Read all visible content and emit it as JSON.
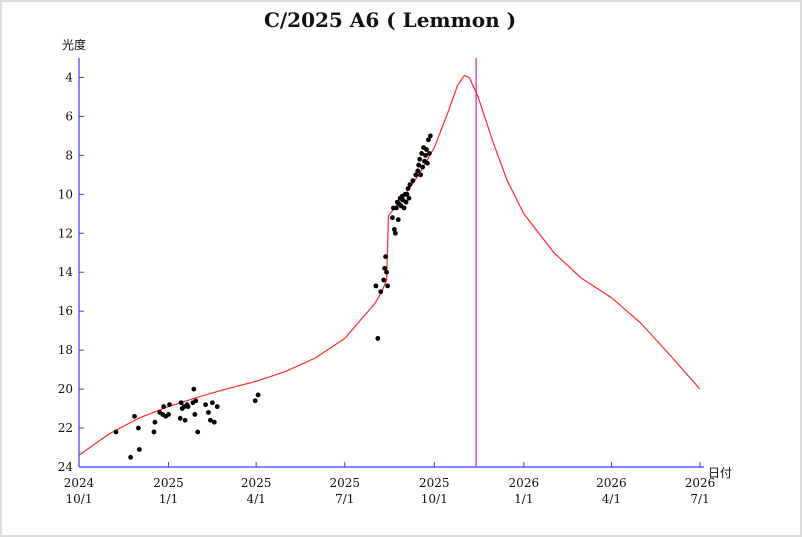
{
  "chart_data": {
    "type": "scatter",
    "title": "C/2025 A6 ( Lemmon )",
    "ylabel": "光度",
    "xlabel": "日付",
    "y_inverted": true,
    "ylim": [
      24,
      3
    ],
    "xlim": [
      "2024-10-01",
      "2026-07-01"
    ],
    "y_ticks": [
      4,
      6,
      8,
      10,
      12,
      14,
      16,
      18,
      20,
      22,
      24
    ],
    "x_ticks": [
      {
        "date": "2024-10-01",
        "line1": "2024",
        "line2": "10/1"
      },
      {
        "date": "2025-01-01",
        "line1": "2025",
        "line2": "1/1"
      },
      {
        "date": "2025-04-01",
        "line1": "2025",
        "line2": "4/1"
      },
      {
        "date": "2025-07-01",
        "line1": "2025",
        "line2": "7/1"
      },
      {
        "date": "2025-10-01",
        "line1": "2025",
        "line2": "10/1"
      },
      {
        "date": "2026-01-01",
        "line1": "2026",
        "line2": "1/1"
      },
      {
        "date": "2026-04-01",
        "line1": "2026",
        "line2": "4/1"
      },
      {
        "date": "2026-07-01",
        "line1": "2026",
        "line2": "7/1"
      }
    ],
    "current_date_marker": "2025-11-13",
    "colors": {
      "curve": "#ff2a2a",
      "axis": "#3a3aff",
      "marker": "#cc33cc",
      "points": "#000000"
    },
    "series": [
      {
        "kind": "predicted_curve",
        "points": [
          [
            "2024-10-01",
            23.4
          ],
          [
            "2024-11-01",
            22.3
          ],
          [
            "2024-12-01",
            21.5
          ],
          [
            "2025-01-01",
            20.9
          ],
          [
            "2025-02-01",
            20.4
          ],
          [
            "2025-03-01",
            20.0
          ],
          [
            "2025-04-01",
            19.6
          ],
          [
            "2025-05-01",
            19.1
          ],
          [
            "2025-06-01",
            18.4
          ],
          [
            "2025-07-01",
            17.4
          ],
          [
            "2025-08-01",
            15.6
          ],
          [
            "2025-08-08",
            15.0
          ],
          [
            "2025-08-13",
            14.4
          ],
          [
            "2025-08-15",
            11.1
          ],
          [
            "2025-09-01",
            10.0
          ],
          [
            "2025-09-15",
            9.0
          ],
          [
            "2025-10-01",
            7.6
          ],
          [
            "2025-10-15",
            5.8
          ],
          [
            "2025-10-25",
            4.4
          ],
          [
            "2025-11-01",
            3.9
          ],
          [
            "2025-11-06",
            4.0
          ],
          [
            "2025-11-15",
            5.0
          ],
          [
            "2025-12-01",
            7.4
          ],
          [
            "2025-12-15",
            9.3
          ],
          [
            "2026-01-01",
            11.0
          ],
          [
            "2026-02-01",
            13.0
          ],
          [
            "2026-03-01",
            14.3
          ],
          [
            "2026-04-01",
            15.3
          ],
          [
            "2026-05-01",
            16.6
          ],
          [
            "2026-06-01",
            18.3
          ],
          [
            "2026-07-01",
            20.0
          ]
        ]
      },
      {
        "kind": "observations",
        "points": [
          [
            "2024-11-08",
            22.2
          ],
          [
            "2024-11-23",
            23.5
          ],
          [
            "2024-11-27",
            21.4
          ],
          [
            "2024-12-01",
            22.0
          ],
          [
            "2024-12-02",
            23.1
          ],
          [
            "2024-12-17",
            22.2
          ],
          [
            "2024-12-18",
            21.7
          ],
          [
            "2024-12-23",
            21.2
          ],
          [
            "2024-12-26",
            21.3
          ],
          [
            "2024-12-27",
            20.9
          ],
          [
            "2024-12-29",
            21.4
          ],
          [
            "2025-01-01",
            21.3
          ],
          [
            "2025-01-02",
            20.8
          ],
          [
            "2025-01-13",
            21.5
          ],
          [
            "2025-01-14",
            20.7
          ],
          [
            "2025-01-15",
            21.0
          ],
          [
            "2025-01-17",
            20.9
          ],
          [
            "2025-01-18",
            21.6
          ],
          [
            "2025-01-20",
            20.8
          ],
          [
            "2025-01-21",
            20.9
          ],
          [
            "2025-01-26",
            20.7
          ],
          [
            "2025-01-27",
            20.0
          ],
          [
            "2025-01-28",
            21.3
          ],
          [
            "2025-01-29",
            20.6
          ],
          [
            "2025-01-31",
            22.2
          ],
          [
            "2025-02-08",
            20.8
          ],
          [
            "2025-02-11",
            21.2
          ],
          [
            "2025-02-13",
            21.6
          ],
          [
            "2025-02-15",
            20.7
          ],
          [
            "2025-02-17",
            21.7
          ],
          [
            "2025-02-20",
            20.9
          ],
          [
            "2025-03-31",
            20.6
          ],
          [
            "2025-04-03",
            20.3
          ],
          [
            "2025-08-02",
            14.7
          ],
          [
            "2025-08-04",
            17.4
          ],
          [
            "2025-08-07",
            15.0
          ],
          [
            "2025-08-10",
            14.4
          ],
          [
            "2025-08-11",
            13.8
          ],
          [
            "2025-08-12",
            13.2
          ],
          [
            "2025-08-13",
            14.0
          ],
          [
            "2025-08-14",
            14.7
          ],
          [
            "2025-08-19",
            11.2
          ],
          [
            "2025-08-20",
            10.7
          ],
          [
            "2025-08-21",
            11.8
          ],
          [
            "2025-08-22",
            12.0
          ],
          [
            "2025-08-23",
            10.7
          ],
          [
            "2025-08-24",
            10.4
          ],
          [
            "2025-08-25",
            11.3
          ],
          [
            "2025-08-26",
            10.5
          ],
          [
            "2025-08-27",
            10.2
          ],
          [
            "2025-08-28",
            10.6
          ],
          [
            "2025-08-29",
            10.1
          ],
          [
            "2025-08-30",
            10.3
          ],
          [
            "2025-08-31",
            10.7
          ],
          [
            "2025-09-01",
            10.0
          ],
          [
            "2025-09-02",
            10.4
          ],
          [
            "2025-09-03",
            10.0
          ],
          [
            "2025-09-04",
            9.7
          ],
          [
            "2025-09-05",
            10.2
          ],
          [
            "2025-09-06",
            9.5
          ],
          [
            "2025-09-09",
            9.3
          ],
          [
            "2025-09-12",
            9.0
          ],
          [
            "2025-09-14",
            8.8
          ],
          [
            "2025-09-15",
            8.5
          ],
          [
            "2025-09-16",
            8.2
          ],
          [
            "2025-09-17",
            9.0
          ],
          [
            "2025-09-18",
            7.9
          ],
          [
            "2025-09-19",
            8.6
          ],
          [
            "2025-09-20",
            7.6
          ],
          [
            "2025-09-21",
            8.3
          ],
          [
            "2025-09-22",
            8.0
          ],
          [
            "2025-09-23",
            7.7
          ],
          [
            "2025-09-24",
            8.4
          ],
          [
            "2025-09-25",
            7.2
          ],
          [
            "2025-09-26",
            7.9
          ],
          [
            "2025-09-27",
            7.0
          ]
        ]
      }
    ]
  }
}
